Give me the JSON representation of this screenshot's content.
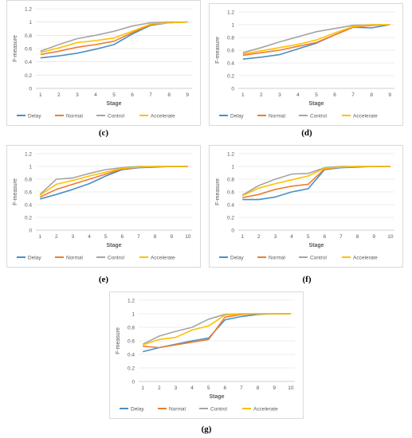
{
  "colors": {
    "Delay": "#4a8fc7",
    "Normal": "#ed7d31",
    "Control": "#a5a5a5",
    "Accelerate": "#ffc000",
    "grid": "#d9d9d9",
    "axis": "#bfbfbf"
  },
  "chart_data": [
    {
      "caption": "(c)",
      "type": "line",
      "xlabel": "Stage",
      "ylabel": "F-measure",
      "x": [
        1,
        2,
        3,
        4,
        5,
        6,
        7,
        8,
        9
      ],
      "ylim": [
        0,
        1.2
      ],
      "yticks": [
        "0",
        "0.2",
        "0.4",
        "0.6",
        "0.8",
        "1",
        "1.2"
      ],
      "grid": true,
      "legend": "bottom",
      "series": [
        {
          "name": "Delay",
          "values": [
            0.46,
            0.49,
            0.53,
            0.59,
            0.66,
            0.82,
            0.95,
            0.99,
            1.0
          ]
        },
        {
          "name": "Normal",
          "values": [
            0.51,
            0.56,
            0.62,
            0.66,
            0.71,
            0.84,
            0.96,
            0.99,
            1.0
          ]
        },
        {
          "name": "Control",
          "values": [
            0.56,
            0.66,
            0.75,
            0.8,
            0.86,
            0.94,
            0.99,
            1.0,
            1.0
          ]
        },
        {
          "name": "Accelerate",
          "values": [
            0.54,
            0.61,
            0.69,
            0.72,
            0.76,
            0.86,
            0.97,
            0.99,
            1.0
          ]
        }
      ]
    },
    {
      "caption": "(d)",
      "type": "line",
      "xlabel": "Stage",
      "ylabel": "F-measure",
      "x": [
        1,
        2,
        3,
        4,
        5,
        6,
        7,
        8,
        9
      ],
      "ylim": [
        0,
        1.2
      ],
      "yticks": [
        "0",
        "0.2",
        "0.4",
        "0.6",
        "0.8",
        "1",
        "1.2"
      ],
      "grid": true,
      "legend": "bottom",
      "series": [
        {
          "name": "Delay",
          "values": [
            0.46,
            0.49,
            0.53,
            0.62,
            0.71,
            0.84,
            0.96,
            0.95,
            1.0
          ]
        },
        {
          "name": "Normal",
          "values": [
            0.52,
            0.56,
            0.6,
            0.66,
            0.72,
            0.84,
            0.96,
            0.99,
            1.0
          ]
        },
        {
          "name": "Control",
          "values": [
            0.56,
            0.64,
            0.73,
            0.81,
            0.89,
            0.94,
            0.99,
            1.0,
            1.0
          ]
        },
        {
          "name": "Accelerate",
          "values": [
            0.54,
            0.59,
            0.64,
            0.69,
            0.76,
            0.87,
            0.97,
            1.0,
            1.0
          ]
        }
      ]
    },
    {
      "caption": "(e)",
      "type": "line",
      "xlabel": "Stage",
      "ylabel": "F-measure",
      "x": [
        1,
        2,
        3,
        4,
        5,
        6,
        7,
        8,
        9,
        10
      ],
      "ylim": [
        0,
        1.2
      ],
      "yticks": [
        "0",
        "0.2",
        "0.4",
        "0.6",
        "0.8",
        "1",
        "1.2"
      ],
      "grid": true,
      "legend": "bottom",
      "series": [
        {
          "name": "Delay",
          "values": [
            0.49,
            0.56,
            0.64,
            0.73,
            0.85,
            0.95,
            0.98,
            0.99,
            1.0,
            1.0
          ]
        },
        {
          "name": "Normal",
          "values": [
            0.52,
            0.64,
            0.72,
            0.8,
            0.88,
            0.96,
            0.99,
            1.0,
            1.0,
            1.0
          ]
        },
        {
          "name": "Control",
          "values": [
            0.56,
            0.8,
            0.82,
            0.89,
            0.95,
            0.98,
            1.0,
            1.0,
            1.0,
            1.0
          ]
        },
        {
          "name": "Accelerate",
          "values": [
            0.55,
            0.72,
            0.78,
            0.85,
            0.91,
            0.97,
            0.99,
            1.0,
            1.0,
            1.0
          ]
        }
      ]
    },
    {
      "caption": "(f)",
      "type": "line",
      "xlabel": "Stage",
      "ylabel": "F-measure",
      "x": [
        1,
        2,
        3,
        4,
        5,
        6,
        7,
        8,
        9,
        10
      ],
      "ylim": [
        0,
        1.2
      ],
      "yticks": [
        "0",
        "0.2",
        "0.4",
        "0.6",
        "0.8",
        "1",
        "1.2"
      ],
      "grid": true,
      "legend": "bottom",
      "series": [
        {
          "name": "Delay",
          "values": [
            0.48,
            0.48,
            0.52,
            0.6,
            0.65,
            0.95,
            0.98,
            0.99,
            1.0,
            1.0
          ]
        },
        {
          "name": "Normal",
          "values": [
            0.51,
            0.56,
            0.64,
            0.69,
            0.72,
            0.96,
            0.99,
            1.0,
            1.0,
            1.0
          ]
        },
        {
          "name": "Control",
          "values": [
            0.55,
            0.7,
            0.8,
            0.88,
            0.89,
            0.98,
            1.0,
            1.0,
            1.0,
            1.0
          ]
        },
        {
          "name": "Accelerate",
          "values": [
            0.54,
            0.66,
            0.73,
            0.79,
            0.85,
            0.97,
            0.99,
            1.0,
            1.0,
            1.0
          ]
        }
      ]
    },
    {
      "caption": "(g)",
      "type": "line",
      "xlabel": "Stage",
      "ylabel": "F-measure",
      "x": [
        1,
        2,
        3,
        4,
        5,
        6,
        7,
        8,
        9,
        10
      ],
      "ylim": [
        0,
        1.2
      ],
      "yticks": [
        "0",
        "0.2",
        "0.4",
        "0.6",
        "0.8",
        "1",
        "1.2"
      ],
      "grid": true,
      "legend": "bottom",
      "series": [
        {
          "name": "Delay",
          "values": [
            0.44,
            0.5,
            0.55,
            0.6,
            0.64,
            0.91,
            0.96,
            0.99,
            1.0,
            1.0
          ]
        },
        {
          "name": "Normal",
          "values": [
            0.52,
            0.5,
            0.54,
            0.58,
            0.62,
            0.95,
            0.99,
            1.0,
            1.0,
            1.0
          ]
        },
        {
          "name": "Control",
          "values": [
            0.55,
            0.67,
            0.74,
            0.8,
            0.92,
            0.99,
            1.0,
            1.0,
            1.0,
            1.0
          ]
        },
        {
          "name": "Accelerate",
          "values": [
            0.54,
            0.62,
            0.65,
            0.76,
            0.82,
            0.98,
            1.0,
            1.0,
            1.0,
            1.0
          ]
        }
      ]
    }
  ]
}
